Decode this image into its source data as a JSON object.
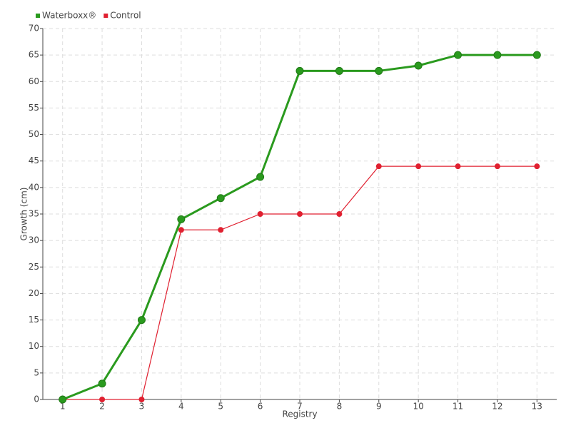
{
  "chart_data": {
    "type": "line",
    "x_label": "Registry",
    "y_label": "Growth (cm)",
    "categories": [
      "1",
      "2",
      "3",
      "4",
      "5",
      "6",
      "7",
      "8",
      "9",
      "10",
      "11",
      "12",
      "13"
    ],
    "series": [
      {
        "name": "Waterboxx®",
        "color": "#2a9a1e",
        "values": [
          0,
          3,
          15,
          34,
          38,
          42,
          62,
          62,
          62,
          63,
          65,
          65,
          65
        ]
      },
      {
        "name": "Control",
        "color": "#e02030",
        "values": [
          0,
          0,
          0,
          32,
          32,
          35,
          35,
          35,
          44,
          44,
          44,
          44,
          44
        ]
      }
    ],
    "ylim": [
      0,
      70
    ],
    "yticks": [
      0,
      5,
      10,
      15,
      20,
      25,
      30,
      35,
      40,
      45,
      50,
      55,
      60,
      65,
      70
    ],
    "grid": true,
    "legend": "top-left"
  }
}
